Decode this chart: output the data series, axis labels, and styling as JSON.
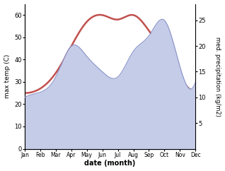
{
  "months": [
    "Jan",
    "Feb",
    "Mar",
    "Apr",
    "May",
    "Jun",
    "Jul",
    "Aug",
    "Sep",
    "Oct",
    "Nov",
    "Dec"
  ],
  "temp": [
    25,
    27,
    34,
    46,
    57,
    60,
    58,
    60,
    53,
    43,
    32,
    25
  ],
  "precip": [
    10,
    11,
    14,
    20,
    18,
    15,
    14,
    19,
    22,
    25,
    16,
    13
  ],
  "temp_color": "#c0504d",
  "precip_fill_color": "#c5cce8",
  "precip_line_color": "#8892c8",
  "temp_ylim": [
    0,
    65
  ],
  "precip_ylim": [
    0,
    28.2
  ],
  "temp_yticks": [
    0,
    10,
    20,
    30,
    40,
    50,
    60
  ],
  "precip_yticks": [
    5,
    10,
    15,
    20,
    25
  ],
  "ylabel_left": "max temp (C)",
  "ylabel_right": "med. precipitation (kg/m2)",
  "xlabel": "date (month)",
  "background_color": "#ffffff"
}
